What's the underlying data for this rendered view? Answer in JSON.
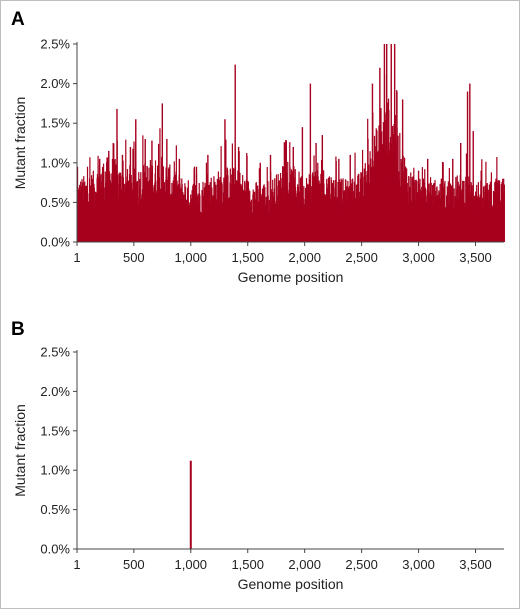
{
  "colors": {
    "bar": "#a6001e",
    "axis": "#444444"
  },
  "chart_data": [
    {
      "panel": "A",
      "type": "bar",
      "xlabel": "Genome position",
      "ylabel": "Mutant fraction",
      "xlim": [
        1,
        3750
      ],
      "ylim": [
        0,
        2.5
      ],
      "x_ticks": [
        1,
        500,
        1000,
        1500,
        2000,
        2500,
        3000,
        3500
      ],
      "x_tick_labels": [
        "1",
        "500",
        "1,000",
        "1,500",
        "2,000",
        "2,500",
        "3,000",
        "3,500"
      ],
      "y_ticks": [
        0,
        0.5,
        1.0,
        1.5,
        2.0,
        2.5
      ],
      "y_tick_labels": [
        "0.0%",
        "0.5%",
        "1.0%",
        "1.5%",
        "2.0%",
        "2.5%"
      ],
      "grid": false,
      "profile": [
        [
          1,
          0.62
        ],
        [
          150,
          0.7
        ],
        [
          200,
          0.8
        ],
        [
          300,
          0.85
        ],
        [
          400,
          0.72
        ],
        [
          500,
          0.72
        ],
        [
          650,
          0.82
        ],
        [
          750,
          0.84
        ],
        [
          850,
          0.7
        ],
        [
          950,
          0.62
        ],
        [
          1000,
          0.6
        ],
        [
          1100,
          0.62
        ],
        [
          1200,
          0.68
        ],
        [
          1300,
          0.74
        ],
        [
          1400,
          0.74
        ],
        [
          1500,
          0.62
        ],
        [
          1600,
          0.58
        ],
        [
          1700,
          0.62
        ],
        [
          1800,
          0.72
        ],
        [
          1900,
          0.74
        ],
        [
          2000,
          0.65
        ],
        [
          2100,
          0.78
        ],
        [
          2200,
          0.7
        ],
        [
          2300,
          0.62
        ],
        [
          2400,
          0.62
        ],
        [
          2500,
          0.7
        ],
        [
          2600,
          1.05
        ],
        [
          2700,
          1.35
        ],
        [
          2750,
          1.4
        ],
        [
          2800,
          1.2
        ],
        [
          2900,
          0.75
        ],
        [
          3000,
          0.62
        ],
        [
          3100,
          0.58
        ],
        [
          3200,
          0.6
        ],
        [
          3300,
          0.64
        ],
        [
          3400,
          0.68
        ],
        [
          3500,
          0.62
        ],
        [
          3600,
          0.58
        ],
        [
          3700,
          0.64
        ],
        [
          3750,
          0.62
        ]
      ],
      "peaks": [
        [
          5,
          0.95
        ],
        [
          200,
          1.05
        ],
        [
          280,
          1.15
        ],
        [
          352,
          1.68
        ],
        [
          400,
          1.1
        ],
        [
          470,
          1.2
        ],
        [
          517,
          1.55
        ],
        [
          600,
          1.3
        ],
        [
          659,
          1.28
        ],
        [
          750,
          1.75
        ],
        [
          790,
          1.3
        ],
        [
          900,
          1.05
        ],
        [
          1050,
          0.95
        ],
        [
          1150,
          1.1
        ],
        [
          1300,
          1.55
        ],
        [
          1390,
          2.24
        ],
        [
          1420,
          1.2
        ],
        [
          1610,
          1.0
        ],
        [
          1700,
          1.1
        ],
        [
          1822,
          1.26
        ],
        [
          1900,
          1.2
        ],
        [
          1980,
          1.45
        ],
        [
          2050,
          2.0
        ],
        [
          2100,
          1.25
        ],
        [
          2155,
          1.35
        ],
        [
          2300,
          1.05
        ],
        [
          2400,
          1.1
        ],
        [
          2595,
          2.0
        ],
        [
          2660,
          2.2
        ],
        [
          2700,
          2.5
        ],
        [
          2720,
          2.5
        ],
        [
          2760,
          2.5
        ],
        [
          2790,
          2.5
        ],
        [
          2810,
          1.9
        ],
        [
          2860,
          1.8
        ],
        [
          3000,
          0.9
        ],
        [
          3080,
          1.05
        ],
        [
          3200,
          0.8
        ],
        [
          3300,
          1.05
        ],
        [
          3370,
          1.25
        ],
        [
          3430,
          1.9
        ],
        [
          3450,
          2.0
        ],
        [
          3480,
          1.4
        ],
        [
          3550,
          0.9
        ],
        [
          3680,
          0.8
        ],
        [
          3700,
          0.78
        ]
      ]
    },
    {
      "panel": "B",
      "type": "bar",
      "xlabel": "Genome position",
      "ylabel": "Mutant fraction",
      "xlim": [
        1,
        3750
      ],
      "ylim": [
        0,
        2.5
      ],
      "x_ticks": [
        1,
        500,
        1000,
        1500,
        2000,
        2500,
        3000,
        3500
      ],
      "x_tick_labels": [
        "1",
        "500",
        "1,000",
        "1,500",
        "2,000",
        "2,500",
        "3,000",
        "3,500"
      ],
      "y_ticks": [
        0,
        0.5,
        1.0,
        1.5,
        2.0,
        2.5
      ],
      "y_tick_labels": [
        "0.0%",
        "0.5%",
        "1.0%",
        "1.5%",
        "2.0%",
        "2.5%"
      ],
      "grid": false,
      "bars": [
        [
          1000,
          1.12
        ]
      ]
    }
  ]
}
